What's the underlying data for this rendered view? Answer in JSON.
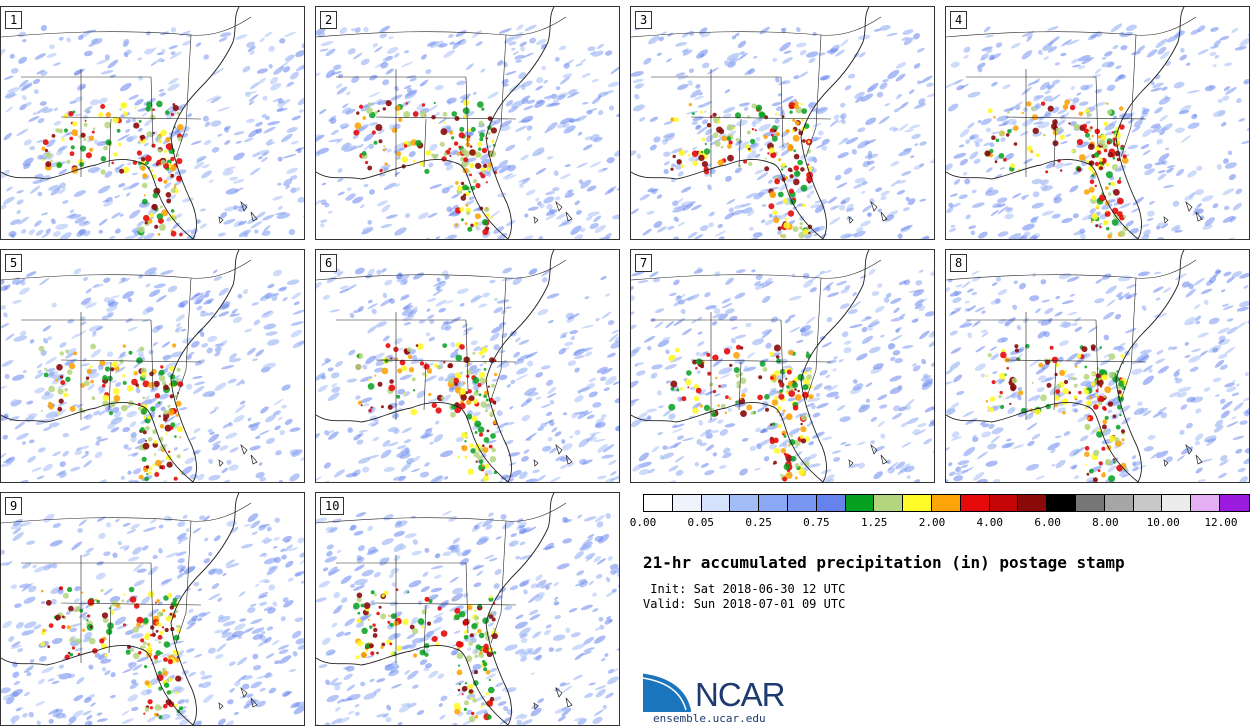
{
  "panels": [
    {
      "label": "1"
    },
    {
      "label": "2"
    },
    {
      "label": "3"
    },
    {
      "label": "4"
    },
    {
      "label": "5"
    },
    {
      "label": "6"
    },
    {
      "label": "7"
    },
    {
      "label": "8"
    },
    {
      "label": "9"
    },
    {
      "label": "10"
    }
  ],
  "colorbar": {
    "colors": [
      "#ffffff",
      "#eef3fc",
      "#d6e2fb",
      "#a5bdf6",
      "#8aa8f3",
      "#7996f0",
      "#6683ec",
      "#05a01f",
      "#b4d57d",
      "#fffa28",
      "#fca40a",
      "#e60a0a",
      "#c50606",
      "#8a0a0a",
      "#000000",
      "#777777",
      "#a6a6a6",
      "#c8c8c8",
      "#ececec",
      "#e5b0f3",
      "#9b1cde"
    ],
    "tick_labels": [
      "0.00",
      "0.05",
      "0.25",
      "0.75",
      "1.25",
      "2.00",
      "4.00",
      "6.00",
      "8.00",
      "10.00",
      "12.00"
    ]
  },
  "title": "21-hr accumulated precipitation (in) postage stamp",
  "init": "Init: Sat 2018-06-30 12 UTC",
  "valid": "Valid: Sun 2018-07-01 09 UTC",
  "logo": {
    "name": "NCAR",
    "url": "ensemble.ucar.edu"
  }
}
